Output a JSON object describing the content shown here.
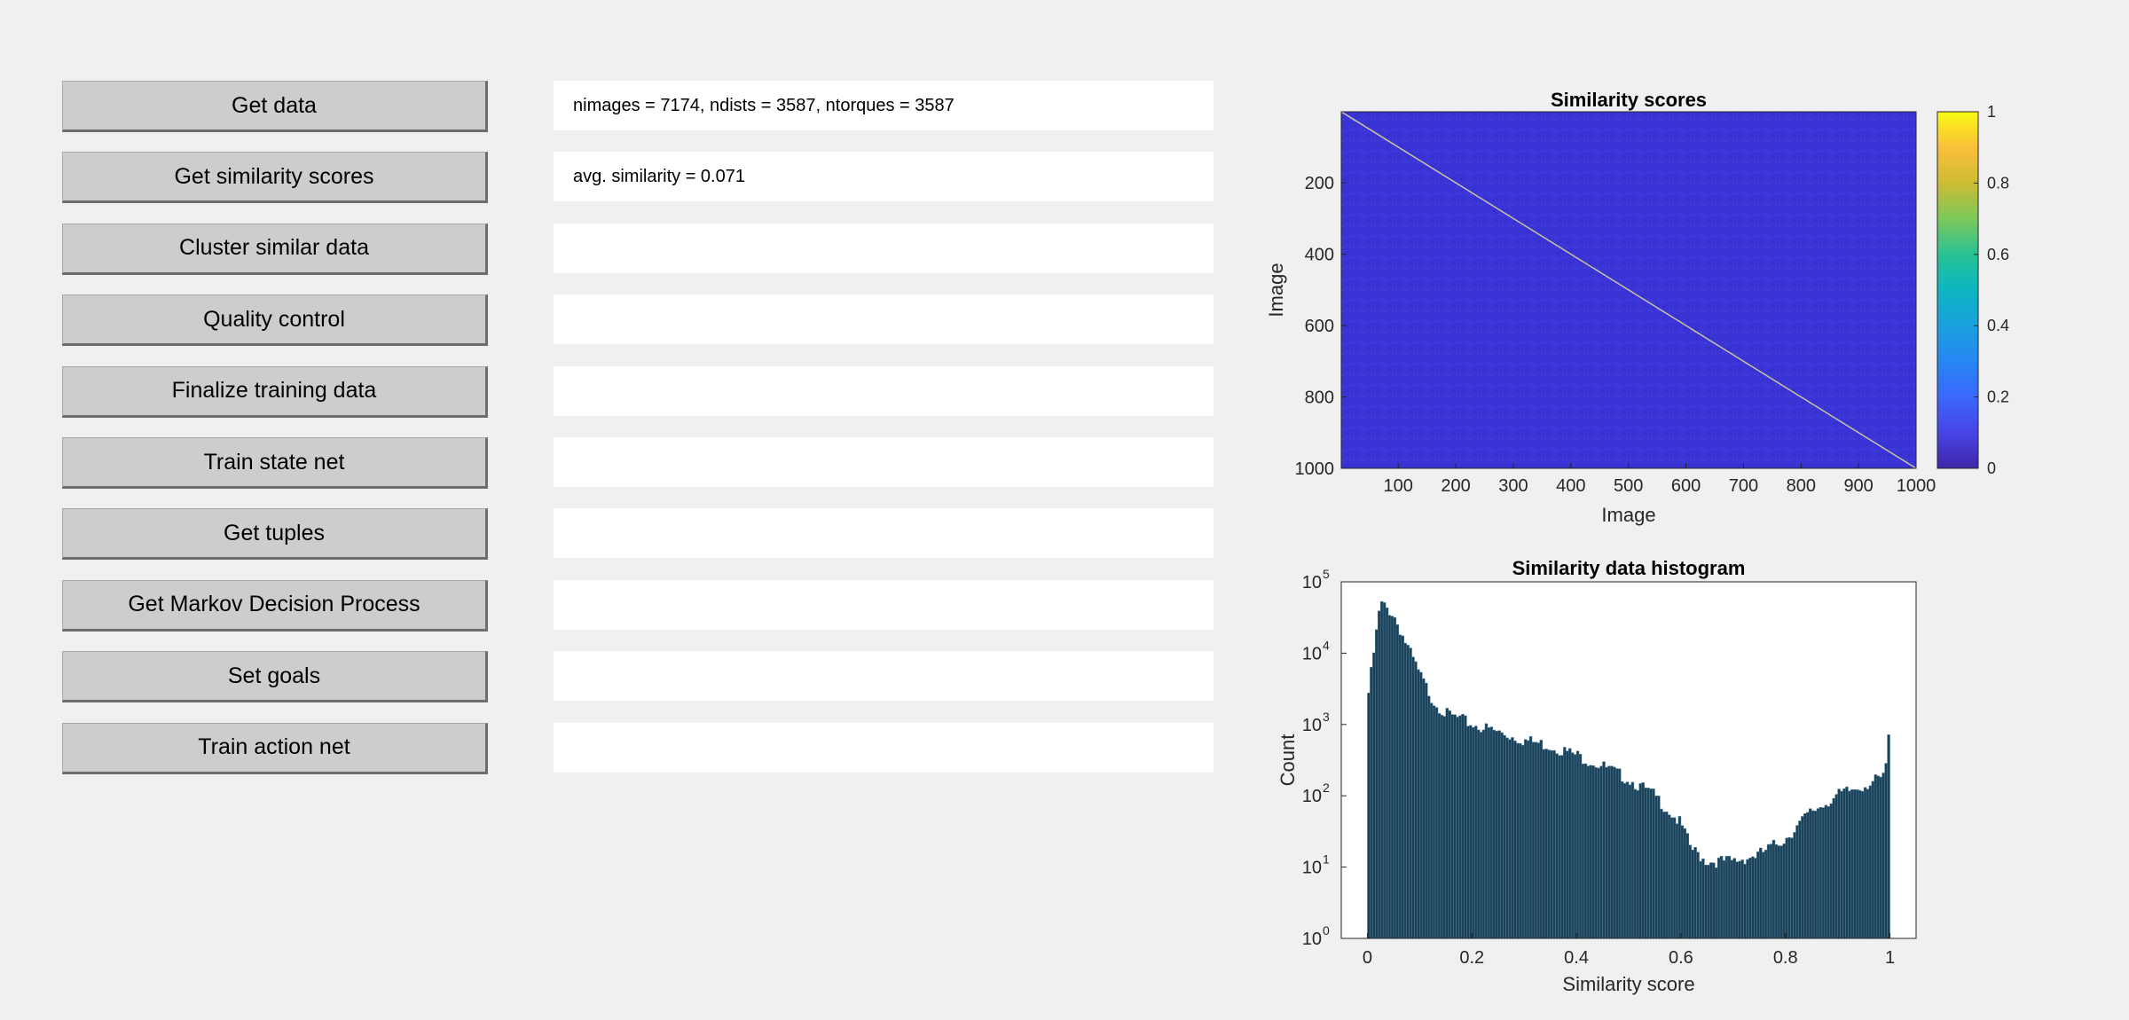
{
  "buttons": [
    {
      "label": "Get data"
    },
    {
      "label": "Get similarity scores"
    },
    {
      "label": "Cluster similar data"
    },
    {
      "label": "Quality control"
    },
    {
      "label": "Finalize training data"
    },
    {
      "label": "Train state net"
    },
    {
      "label": "Get tuples"
    },
    {
      "label": "Get Markov Decision Process"
    },
    {
      "label": "Set goals"
    },
    {
      "label": "Train action net"
    }
  ],
  "fields": [
    {
      "text": "nimages = 7174, ndists = 3587, ntorques = 3587"
    },
    {
      "text": "avg. similarity = 0.071"
    },
    {
      "text": ""
    },
    {
      "text": ""
    },
    {
      "text": ""
    },
    {
      "text": ""
    },
    {
      "text": ""
    },
    {
      "text": ""
    },
    {
      "text": ""
    },
    {
      "text": ""
    }
  ],
  "colors": {
    "background": "#f0f0f0",
    "button": "#cdcdcd",
    "heatmap_base": "#3a33d6",
    "histogram_bar": "#1b4058"
  },
  "chart_data": [
    {
      "type": "heatmap",
      "title": "Similarity scores",
      "xlabel": "Image",
      "ylabel": "Image",
      "xlim": [
        1,
        1000
      ],
      "ylim": [
        1,
        1000
      ],
      "y_reversed": true,
      "xticks": [
        "100",
        "200",
        "300",
        "400",
        "500",
        "600",
        "700",
        "800",
        "900",
        "1000"
      ],
      "yticks": [
        "200",
        "400",
        "600",
        "800",
        "1000"
      ],
      "colorbar": {
        "range": [
          0,
          1
        ],
        "ticks": [
          "0",
          "0.2",
          "0.4",
          "0.6",
          "0.8",
          "1"
        ],
        "colormap": "parula"
      },
      "typical_value": 0.071,
      "diagonal_value": 1
    },
    {
      "type": "bar",
      "title": "Similarity data histogram",
      "xlabel": "Similarity score",
      "ylabel": "Count",
      "xlim": [
        -0.05,
        1.05
      ],
      "ylim": [
        1,
        100000
      ],
      "yscale": "log",
      "xticks": [
        "0",
        "0.2",
        "0.4",
        "0.6",
        "0.8",
        "1"
      ],
      "yticks": [
        {
          "base": "10",
          "exp": "0"
        },
        {
          "base": "10",
          "exp": "1"
        },
        {
          "base": "10",
          "exp": "2"
        },
        {
          "base": "10",
          "exp": "3"
        },
        {
          "base": "10",
          "exp": "4"
        },
        {
          "base": "10",
          "exp": "5"
        }
      ],
      "bins": [
        0.0,
        0.025,
        0.05,
        0.075,
        0.1,
        0.125,
        0.15,
        0.175,
        0.2,
        0.25,
        0.3,
        0.35,
        0.4,
        0.45,
        0.5,
        0.55,
        0.6,
        0.62,
        0.65,
        0.7,
        0.75,
        0.8,
        0.85,
        0.9,
        0.95,
        0.99,
        1.0
      ],
      "counts": [
        2000,
        50000,
        35000,
        13000,
        5000,
        2200,
        1400,
        1200,
        1000,
        780,
        600,
        500,
        370,
        260,
        170,
        100,
        40,
        18,
        12,
        12,
        15,
        25,
        60,
        100,
        140,
        180,
        1000
      ]
    }
  ]
}
